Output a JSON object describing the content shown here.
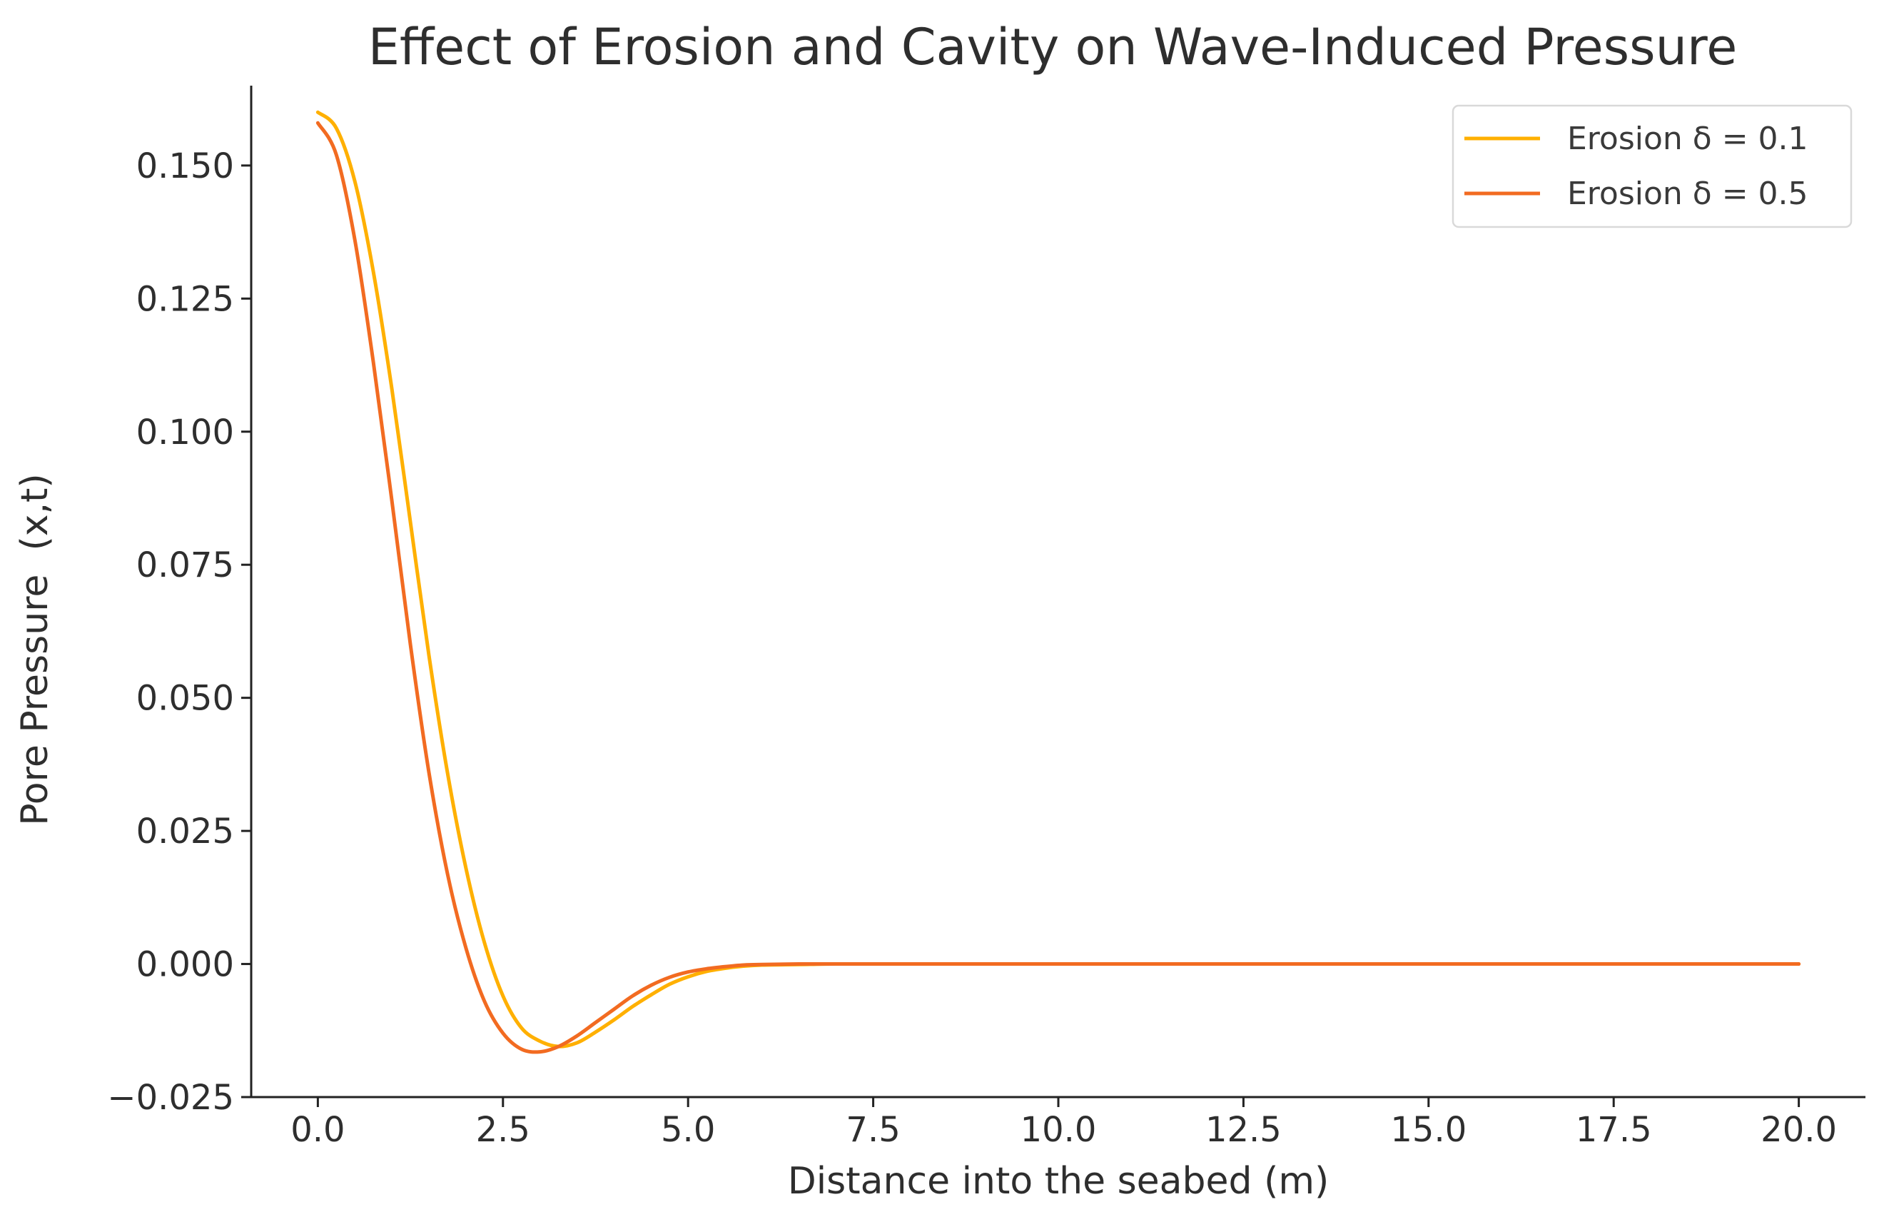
{
  "chart_data": {
    "type": "line",
    "title": "Effect of Erosion and Cavity on Wave-Induced Pressure",
    "xlabel": "Distance into the seabed (m)",
    "ylabel": "Pore Pressure  (x,t)",
    "xlim": [
      -0.9,
      20.9
    ],
    "ylim": [
      -0.025,
      0.165
    ],
    "grid": false,
    "legend_position": "top-right",
    "x_ticks": [
      0.0,
      2.5,
      5.0,
      7.5,
      10.0,
      12.5,
      15.0,
      17.5,
      20.0
    ],
    "x_tick_labels": [
      "0.0",
      "2.5",
      "5.0",
      "7.5",
      "10.0",
      "12.5",
      "15.0",
      "17.5",
      "20.0"
    ],
    "y_ticks": [
      -0.025,
      0.0,
      0.025,
      0.05,
      0.075,
      0.1,
      0.125,
      0.15
    ],
    "y_tick_labels": [
      "−0.025",
      "0.000",
      "0.025",
      "0.050",
      "0.075",
      "0.100",
      "0.125",
      "0.150"
    ],
    "series": [
      {
        "name": "Erosion δ = 0.1",
        "color": "#ffb000",
        "x": [
          0.0,
          0.25,
          0.5,
          0.75,
          1.0,
          1.25,
          1.5,
          1.75,
          2.0,
          2.25,
          2.5,
          2.75,
          3.0,
          3.25,
          3.5,
          3.75,
          4.0,
          4.25,
          4.5,
          4.75,
          5.0,
          5.25,
          5.5,
          5.75,
          6.0,
          6.5,
          7.0,
          8.0,
          10.0,
          12.0,
          14.0,
          16.0,
          18.0,
          20.0
        ],
        "y": [
          0.16,
          0.157,
          0.147,
          0.13,
          0.108,
          0.083,
          0.058,
          0.036,
          0.018,
          0.004,
          -0.006,
          -0.012,
          -0.0145,
          -0.0155,
          -0.0148,
          -0.0128,
          -0.0105,
          -0.008,
          -0.0058,
          -0.0038,
          -0.0024,
          -0.0014,
          -0.0008,
          -0.0004,
          -0.0002,
          -0.0001,
          0.0,
          0.0,
          0.0,
          0.0,
          0.0,
          0.0,
          0.0,
          0.0
        ]
      },
      {
        "name": "Erosion δ = 0.5",
        "color": "#f26b21",
        "x": [
          0.0,
          0.25,
          0.5,
          0.75,
          1.0,
          1.25,
          1.5,
          1.75,
          2.0,
          2.25,
          2.5,
          2.75,
          3.0,
          3.25,
          3.5,
          3.75,
          4.0,
          4.25,
          4.5,
          4.75,
          5.0,
          5.25,
          5.5,
          5.75,
          6.0,
          6.5,
          7.0,
          8.0,
          10.0,
          12.0,
          14.0,
          16.0,
          18.0,
          20.0
        ],
        "y": [
          0.158,
          0.152,
          0.136,
          0.113,
          0.087,
          0.06,
          0.036,
          0.017,
          0.003,
          -0.007,
          -0.013,
          -0.016,
          -0.0165,
          -0.0155,
          -0.0135,
          -0.011,
          -0.0085,
          -0.006,
          -0.004,
          -0.0025,
          -0.0015,
          -0.0009,
          -0.0005,
          -0.0002,
          -0.0001,
          0.0,
          0.0,
          0.0,
          0.0,
          0.0,
          0.0,
          0.0,
          0.0,
          0.0
        ]
      }
    ]
  }
}
